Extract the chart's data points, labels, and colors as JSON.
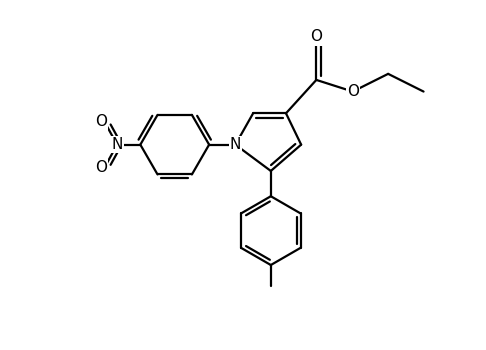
{
  "line_color": "#000000",
  "bg_color": "#ffffff",
  "line_width": 1.6,
  "figsize": [
    4.86,
    3.5
  ],
  "dpi": 100,
  "xlim": [
    0,
    9.5
  ],
  "ylim": [
    0,
    6.8
  ]
}
